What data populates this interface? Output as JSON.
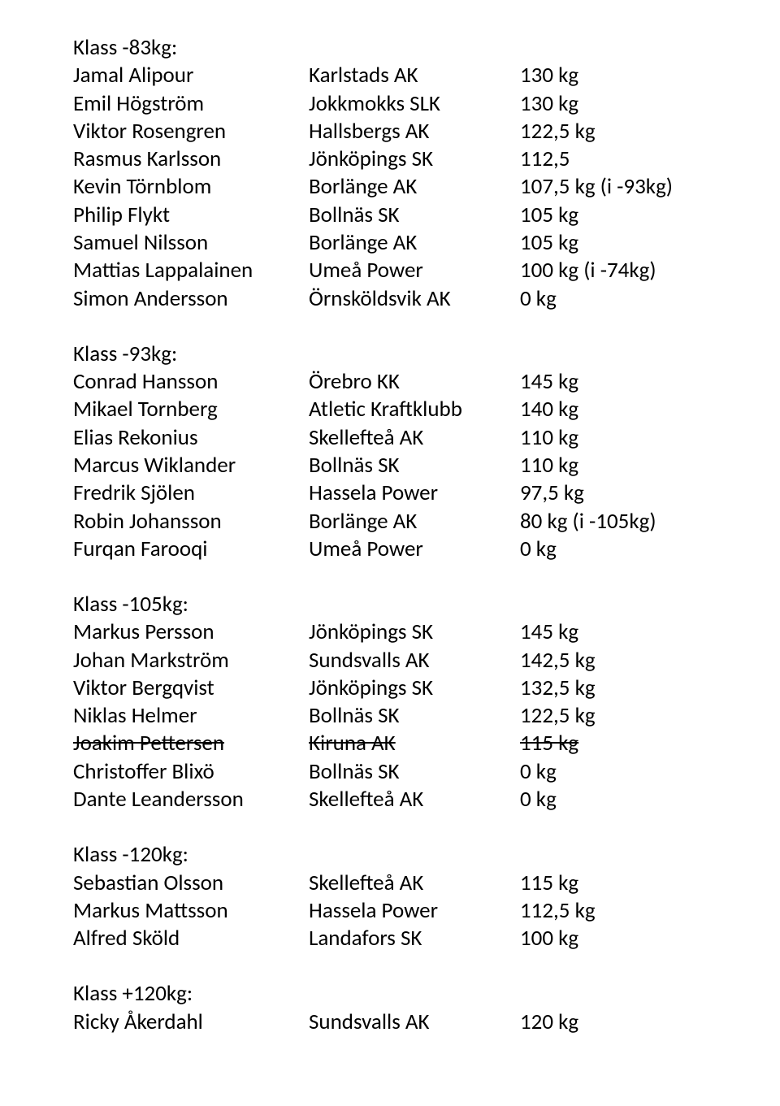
{
  "text_color": "#000000",
  "background_color": "#ffffff",
  "groups": [
    {
      "header": "Klass -83kg:",
      "rows": [
        {
          "name": "Jamal Alipour",
          "club": "Karlstads AK",
          "weight": "130 kg",
          "strike": false
        },
        {
          "name": "Emil Högström",
          "club": "Jokkmokks SLK",
          "weight": "130 kg",
          "strike": false
        },
        {
          "name": "Viktor Rosengren",
          "club": "Hallsbergs AK",
          "weight": "122,5 kg",
          "strike": false
        },
        {
          "name": "Rasmus Karlsson",
          "club": "Jönköpings SK",
          "weight": "112,5",
          "strike": false
        },
        {
          "name": "Kevin Törnblom",
          "club": "Borlänge AK",
          "weight": "107,5 kg (i -93kg)",
          "strike": false
        },
        {
          "name": "Philip Flykt",
          "club": "Bollnäs SK",
          "weight": "105 kg",
          "strike": false
        },
        {
          "name": "Samuel Nilsson",
          "club": "Borlänge AK",
          "weight": "105 kg",
          "strike": false
        },
        {
          "name": "Mattias Lappalainen",
          "club": "Umeå Power",
          "weight": "100 kg (i -74kg)",
          "strike": false
        },
        {
          "name": "Simon Andersson",
          "club": "Örnsköldsvik AK",
          "weight": "0 kg",
          "strike": false
        }
      ]
    },
    {
      "header": "Klass -93kg:",
      "rows": [
        {
          "name": "Conrad Hansson",
          "club": "Örebro KK",
          "weight": "145 kg",
          "strike": false
        },
        {
          "name": "Mikael Tornberg",
          "club": "Atletic Kraftklubb",
          "weight": "140 kg",
          "strike": false
        },
        {
          "name": "Elias Rekonius",
          "club": "Skellefteå AK",
          "weight": "110 kg",
          "strike": false
        },
        {
          "name": "Marcus Wiklander",
          "club": "Bollnäs SK",
          "weight": "110 kg",
          "strike": false
        },
        {
          "name": "Fredrik Sjölen",
          "club": "Hassela Power",
          "weight": "97,5 kg",
          "strike": false
        },
        {
          "name": "Robin Johansson",
          "club": "Borlänge AK",
          "weight": "80 kg (i -105kg)",
          "strike": false
        },
        {
          "name": "Furqan Farooqi",
          "club": "Umeå Power",
          "weight": "0 kg",
          "strike": false
        }
      ]
    },
    {
      "header": "Klass -105kg:",
      "rows": [
        {
          "name": "Markus Persson",
          "club": "Jönköpings SK",
          "weight": "145 kg",
          "strike": false
        },
        {
          "name": "Johan Markström",
          "club": "Sundsvalls AK",
          "weight": "142,5 kg",
          "strike": false
        },
        {
          "name": "Viktor Bergqvist",
          "club": "Jönköpings SK",
          "weight": "132,5 kg",
          "strike": false
        },
        {
          "name": "Niklas Helmer",
          "club": "Bollnäs SK",
          "weight": "122,5 kg",
          "strike": false
        },
        {
          "name": "Joakim Pettersen",
          "club": "Kiruna AK",
          "weight": "115 kg",
          "strike": true
        },
        {
          "name": "Christoffer Blixö",
          "club": "Bollnäs SK",
          "weight": "0 kg",
          "strike": false
        },
        {
          "name": "Dante Leandersson",
          "club": "Skellefteå AK",
          "weight": "0 kg",
          "strike": false
        }
      ]
    },
    {
      "header": "Klass -120kg:",
      "rows": [
        {
          "name": "Sebastian Olsson",
          "club": "Skellefteå AK",
          "weight": "115 kg",
          "strike": false
        },
        {
          "name": "Markus Mattsson",
          "club": "Hassela Power",
          "weight": "112,5 kg",
          "strike": false
        },
        {
          "name": "Alfred Sköld",
          "club": "Landafors SK",
          "weight": "100 kg",
          "strike": false
        }
      ]
    },
    {
      "header": "Klass +120kg:",
      "rows": [
        {
          "name": "Ricky Åkerdahl",
          "club": "Sundsvalls AK",
          "weight": "120 kg",
          "strike": false
        }
      ]
    }
  ]
}
